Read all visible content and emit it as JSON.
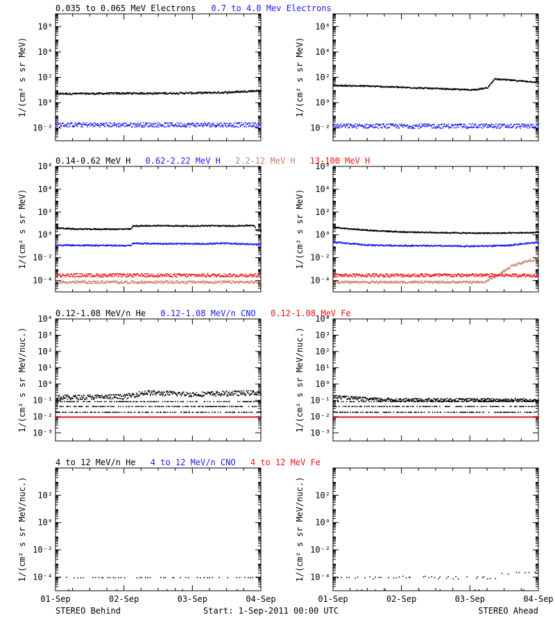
{
  "colors": {
    "black": "#000000",
    "blue": "#1a1aff",
    "tan": "#c87f66",
    "red": "#ee1111"
  },
  "footer": {
    "left": "STEREO Behind",
    "center": "Start:  1-Sep-2011 00:00 UTC",
    "right": "STEREO Ahead"
  },
  "x_ticks": [
    "01-Sep",
    "02-Sep",
    "03-Sep",
    "04-Sep"
  ],
  "chart_data": [
    {
      "type": "scatter",
      "row": "electrons",
      "spacecraft": "STEREO Behind",
      "legend": [
        {
          "label": "0.035 to 0.065 MeV Electrons",
          "color": "#000000"
        },
        {
          "label": "0.7 to 4.0 Mev Electrons",
          "color": "#1a1aff"
        }
      ],
      "ylabel": "1/(cm² s sr MeV)",
      "yscale": "log",
      "ylim_exp": [
        -3,
        7
      ],
      "ytick_exps": [
        -2,
        0,
        2,
        4,
        6
      ],
      "xlim_days": [
        0,
        3
      ],
      "series": [
        {
          "name": "0.035 to 0.065 MeV Electrons",
          "color": "#000000",
          "x": [
            0,
            0.5,
            1,
            1.5,
            2,
            2.5,
            3
          ],
          "y_log10": [
            0.75,
            0.75,
            0.78,
            0.78,
            0.8,
            0.85,
            1.0
          ],
          "scatter": 0.07
        },
        {
          "name": "0.7 to 4.0 Mev Electrons",
          "color": "#1a1aff",
          "x": [
            0,
            3
          ],
          "y_log10": [
            -1.7,
            -1.7
          ],
          "scatter": 0.18
        }
      ]
    },
    {
      "type": "scatter",
      "row": "electrons",
      "spacecraft": "STEREO Ahead",
      "legend": [],
      "ylabel": "1/(cm² s sr MeV)",
      "yscale": "log",
      "ylim_exp": [
        -3,
        7
      ],
      "ytick_exps": [
        -2,
        0,
        2,
        4,
        6
      ],
      "xlim_days": [
        0,
        3
      ],
      "series": [
        {
          "name": "0.035 to 0.065 MeV Electrons",
          "color": "#000000",
          "x": [
            0,
            0.5,
            1,
            1.5,
            2,
            2.1,
            2.25,
            2.35,
            2.5,
            3
          ],
          "y_log10": [
            1.4,
            1.35,
            1.25,
            1.15,
            1.05,
            1.1,
            1.2,
            1.9,
            1.85,
            1.65
          ],
          "scatter": 0.05
        },
        {
          "name": "0.7 to 4.0 Mev Electrons",
          "color": "#1a1aff",
          "x": [
            0,
            3
          ],
          "y_log10": [
            -1.8,
            -1.8
          ],
          "scatter": 0.18
        }
      ]
    },
    {
      "type": "scatter",
      "row": "protons",
      "spacecraft": "STEREO Behind",
      "legend": [
        {
          "label": "0.14-0.62 MeV H",
          "color": "#000000"
        },
        {
          "label": "0.62-2.22 MeV H",
          "color": "#1a1aff"
        },
        {
          "label": "2.2-12 MeV H",
          "color": "#c87f66"
        },
        {
          "label": "13-100 MeV H",
          "color": "#ee1111"
        }
      ],
      "ylabel": "1/(cm² s sr MeV)",
      "yscale": "log",
      "ylim_exp": [
        -5,
        6
      ],
      "ytick_exps": [
        -4,
        -2,
        0,
        2,
        4,
        6
      ],
      "xlim_days": [
        0,
        3
      ],
      "series": [
        {
          "name": "0.14-0.62 MeV H",
          "color": "#000000",
          "x": [
            0,
            0.3,
            1,
            1.1,
            1.12,
            1.5,
            2,
            2.3,
            2.5,
            2.9,
            2.92,
            3
          ],
          "y_log10": [
            0.65,
            0.55,
            0.55,
            0.55,
            0.82,
            0.85,
            0.82,
            0.85,
            0.82,
            0.88,
            0.45,
            0.45
          ],
          "scatter": 0.05
        },
        {
          "name": "0.62-2.22 MeV H",
          "color": "#1a1aff",
          "x": [
            0,
            1.1,
            1.12,
            2,
            2.5,
            3
          ],
          "y_log10": [
            -0.85,
            -0.9,
            -0.7,
            -0.75,
            -0.7,
            -0.8
          ],
          "scatter": 0.06
        },
        {
          "name": "2.2-12 MeV H",
          "color": "#c87f66",
          "x": [
            0,
            3
          ],
          "y_log10": [
            -4.1,
            -4.1
          ],
          "scatter": 0.12
        },
        {
          "name": "13-100 MeV H",
          "color": "#ee1111",
          "x": [
            0,
            3
          ],
          "y_log10": [
            -3.5,
            -3.5
          ],
          "scatter": 0.15
        }
      ]
    },
    {
      "type": "scatter",
      "row": "protons",
      "spacecraft": "STEREO Ahead",
      "legend": [],
      "ylabel": "1/(cm² s sr MeV)",
      "yscale": "log",
      "ylim_exp": [
        -5,
        6
      ],
      "ytick_exps": [
        -4,
        -2,
        0,
        2,
        4,
        6
      ],
      "xlim_days": [
        0,
        3
      ],
      "series": [
        {
          "name": "0.14-0.62 MeV H",
          "color": "#000000",
          "x": [
            0,
            0.5,
            1,
            1.5,
            2,
            2.5,
            3
          ],
          "y_log10": [
            0.7,
            0.45,
            0.3,
            0.25,
            0.2,
            0.2,
            0.25
          ],
          "scatter": 0.05
        },
        {
          "name": "0.62-2.22 MeV H",
          "color": "#1a1aff",
          "x": [
            0,
            0.5,
            1,
            2,
            2.5,
            3
          ],
          "y_log10": [
            -0.6,
            -0.85,
            -0.9,
            -0.95,
            -0.9,
            -0.6
          ],
          "scatter": 0.06
        },
        {
          "name": "2.2-12 MeV H",
          "color": "#c87f66",
          "x": [
            0,
            2.2,
            2.4,
            2.6,
            2.8,
            3
          ],
          "y_log10": [
            -4.1,
            -4.1,
            -3.5,
            -2.7,
            -2.3,
            -2.05
          ],
          "scatter": 0.1
        },
        {
          "name": "13-100 MeV H",
          "color": "#ee1111",
          "x": [
            0,
            3
          ],
          "y_log10": [
            -3.5,
            -3.5
          ],
          "scatter": 0.15
        }
      ]
    },
    {
      "type": "scatter",
      "row": "ions-low",
      "spacecraft": "STEREO Behind",
      "legend": [
        {
          "label": "0.12-1.08 MeV/n He",
          "color": "#000000"
        },
        {
          "label": "0.12-1.08 MeV/n CNO",
          "color": "#1a1aff"
        },
        {
          "label": "0.12-1.08 MeV Fe",
          "color": "#ee1111"
        }
      ],
      "ylabel": "1/(cm² s sr MeV/nuc.)",
      "yscale": "log",
      "ylim_exp": [
        -3.5,
        4
      ],
      "ytick_exps": [
        -3,
        -2,
        -1,
        0,
        1,
        2,
        3,
        4
      ],
      "xlim_days": [
        0,
        3
      ],
      "series": [
        {
          "name": "0.12-1.08 MeV/n He (upper)",
          "color": "#000000",
          "x": [
            0,
            1,
            1.3,
            2,
            2.5,
            3
          ],
          "y_log10": [
            -0.8,
            -0.75,
            -0.5,
            -0.6,
            -0.55,
            -0.5
          ],
          "scatter": 0.15
        },
        {
          "name": "0.12-1.08 MeV/n He (levels)",
          "color": "#000000",
          "x": [
            0,
            3
          ],
          "y_log10": [
            -1.35,
            -1.35
          ],
          "levels": [
            -1.05,
            -1.35,
            -1.7
          ],
          "scatter": 0
        },
        {
          "name": "0.12-1.08 MeV/n CNO",
          "color": "#1a1aff",
          "x": [
            0,
            3
          ],
          "y_log10": [
            -2.0,
            -2.0
          ],
          "scatter": 0
        },
        {
          "name": "0.12-1.08 MeV Fe",
          "color": "#ee1111",
          "x": [
            0,
            3
          ],
          "y_log10": [
            -2.0,
            -2.0
          ],
          "scatter": 0
        }
      ]
    },
    {
      "type": "scatter",
      "row": "ions-low",
      "spacecraft": "STEREO Ahead",
      "legend": [],
      "ylabel": "1/(cm² s sr MeV/nuc.)",
      "yscale": "log",
      "ylim_exp": [
        -3.5,
        4
      ],
      "ytick_exps": [
        -3,
        -2,
        -1,
        0,
        1,
        2,
        3,
        4
      ],
      "xlim_days": [
        0,
        3
      ],
      "series": [
        {
          "name": "0.12-1.08 MeV/n He (upper)",
          "color": "#000000",
          "x": [
            0,
            0.5,
            1,
            2,
            3
          ],
          "y_log10": [
            -0.75,
            -0.9,
            -0.95,
            -0.95,
            -0.95
          ],
          "scatter": 0.1
        },
        {
          "name": "0.12-1.08 MeV/n He (levels)",
          "color": "#000000",
          "x": [
            0,
            3
          ],
          "y_log10": [
            -1.35,
            -1.35
          ],
          "levels": [
            -1.05,
            -1.35,
            -1.7
          ],
          "scatter": 0
        },
        {
          "name": "0.12-1.08 MeV/n CNO",
          "color": "#1a1aff",
          "x": [
            0,
            3
          ],
          "y_log10": [
            -2.0,
            -2.0
          ],
          "scatter": 0
        },
        {
          "name": "0.12-1.08 MeV Fe",
          "color": "#ee1111",
          "x": [
            0,
            3
          ],
          "y_log10": [
            -2.0,
            -2.0
          ],
          "scatter": 0
        }
      ]
    },
    {
      "type": "scatter",
      "row": "ions-high",
      "spacecraft": "STEREO Behind",
      "legend": [
        {
          "label": "4 to 12 MeV/n He",
          "color": "#000000"
        },
        {
          "label": "4 to 12 MeV/n CNO",
          "color": "#1a1aff"
        },
        {
          "label": "4 to 12 MeV Fe",
          "color": "#ee1111"
        }
      ],
      "ylabel": "1/(cm² s sr MeV/nuc.)",
      "yscale": "log",
      "ylim_exp": [
        -5,
        4
      ],
      "ytick_exps": [
        -4,
        -2,
        0,
        2
      ],
      "xlim_days": [
        0,
        3
      ],
      "series": [
        {
          "name": "4 to 12 MeV/n He",
          "color": "#000000",
          "x": [
            0,
            3
          ],
          "y_log10": [
            -4.0,
            -4.0
          ],
          "scatter": 0.02,
          "sparse": true
        },
        {
          "name": "4 to 12 MeV/n CNO",
          "color": "#1a1aff",
          "x": [
            0,
            3
          ],
          "y_log10": [
            -4.9,
            -4.9
          ],
          "scatter": 0,
          "sparse": true,
          "rare": true
        }
      ]
    },
    {
      "type": "scatter",
      "row": "ions-high",
      "spacecraft": "STEREO Ahead",
      "legend": [],
      "ylabel": "1/(cm² s sr MeV/nuc.)",
      "yscale": "log",
      "ylim_exp": [
        -5,
        4
      ],
      "ytick_exps": [
        -4,
        -2,
        0,
        2
      ],
      "xlim_days": [
        0,
        3
      ],
      "series": [
        {
          "name": "4 to 12 MeV/n He",
          "color": "#000000",
          "x": [
            0,
            2.4,
            2.45,
            3
          ],
          "y_log10": [
            -4.0,
            -4.0,
            -3.7,
            -3.6
          ],
          "scatter": 0.1,
          "sparse": true
        },
        {
          "name": "4 to 12 MeV/n CNO",
          "color": "#1a1aff",
          "x": [
            0,
            3
          ],
          "y_log10": [
            -4.9,
            -4.9
          ],
          "scatter": 0,
          "sparse": true,
          "rare": true
        },
        {
          "name": "4 to 12 MeV Fe",
          "color": "#ee1111",
          "x": [
            0,
            3
          ],
          "y_log10": [
            -4.9,
            -4.9
          ],
          "scatter": 0,
          "sparse": true,
          "rare": true
        }
      ]
    }
  ]
}
